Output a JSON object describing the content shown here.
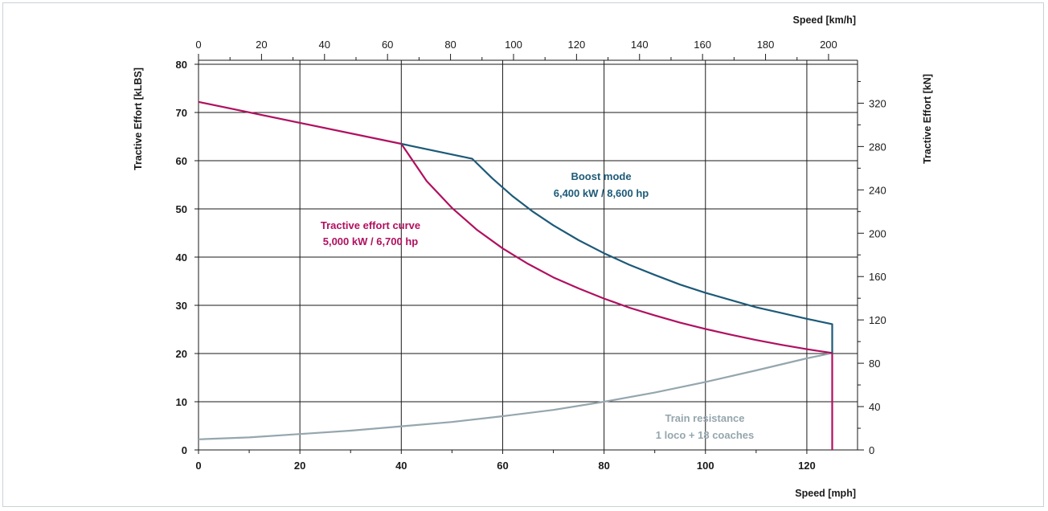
{
  "chart_data": {
    "type": "line",
    "title": "",
    "xlabel": "Speed [mph]",
    "ylabel": "Tractive Effort [kLBS]",
    "x2label": "Speed [km/h]",
    "y2label": "Tractive Effort [kN]",
    "xlim": [
      0,
      130
    ],
    "ylim": [
      0,
      80
    ],
    "x2lim": [
      0,
      209.2
    ],
    "y2lim": [
      0,
      355.9
    ],
    "grid": true,
    "x_ticks": [
      "0",
      "20",
      "40",
      "60",
      "80",
      "100",
      "120"
    ],
    "y_ticks": [
      "0",
      "10",
      "20",
      "30",
      "40",
      "50",
      "60",
      "70",
      "80"
    ],
    "x2_ticks": [
      "0",
      "20",
      "40",
      "60",
      "80",
      "100",
      "120",
      "140",
      "160",
      "180",
      "200"
    ],
    "y2_ticks": [
      "0",
      "40",
      "80",
      "120",
      "160",
      "200",
      "240",
      "280",
      "320"
    ],
    "series": [
      {
        "name": "Tractive effort curve",
        "label": "Tractive effort curve",
        "label2": "5,000 kW / 6,700 hp",
        "color": "#b0105f",
        "x": [
          0,
          40,
          45,
          50,
          55,
          60,
          65,
          70,
          75,
          80,
          85,
          90,
          95,
          100,
          105,
          110,
          115,
          120,
          125,
          125
        ],
        "y": [
          72.2,
          63.5,
          55.8,
          50.2,
          45.6,
          41.8,
          38.6,
          35.8,
          33.5,
          31.4,
          29.5,
          27.9,
          26.4,
          25.1,
          23.9,
          22.8,
          21.8,
          20.9,
          20.1,
          0
        ]
      },
      {
        "name": "Boost mode",
        "label": "Boost mode",
        "label2": "6,400 kW / 8,600 hp",
        "color": "#1d5a78",
        "x": [
          40,
          54,
          58,
          62,
          66,
          70,
          75,
          80,
          85,
          90,
          95,
          100,
          105,
          110,
          115,
          120,
          125,
          125
        ],
        "y": [
          63.5,
          60.4,
          56.3,
          52.6,
          49.4,
          46.6,
          43.5,
          40.8,
          38.4,
          36.3,
          34.3,
          32.6,
          31.1,
          29.6,
          28.4,
          27.2,
          26.1,
          20.1
        ]
      },
      {
        "name": "Train resistance",
        "label": "Train resistance",
        "label2": "1 loco + 18 coaches",
        "color": "#95a6ae",
        "x": [
          0,
          10,
          20,
          30,
          40,
          50,
          60,
          70,
          80,
          90,
          100,
          110,
          120,
          125
        ],
        "y": [
          2.2,
          2.6,
          3.3,
          4.0,
          4.9,
          5.8,
          7.0,
          8.3,
          10.0,
          11.9,
          14.1,
          16.5,
          19.0,
          20.1
        ]
      }
    ]
  }
}
